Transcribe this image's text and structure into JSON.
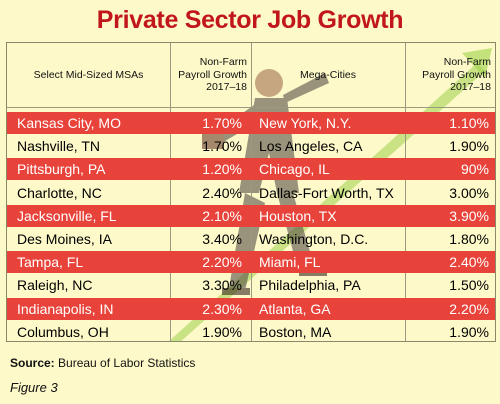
{
  "title": "Private Sector Job Growth",
  "headers": {
    "left_city": "Select Mid-Sized MSAs",
    "left_growth_lines": [
      "Non-Farm",
      "Payroll Growth",
      "2017–18"
    ],
    "right_city": "Mega-Cities",
    "right_growth_lines": [
      "Non-Farm",
      "Payroll Growth",
      "2017–18"
    ]
  },
  "chart_data": {
    "type": "table",
    "title": "Private Sector Job Growth",
    "columns": [
      "Select Mid-Sized MSAs",
      "Non-Farm Payroll Growth 2017–18",
      "Mega-Cities",
      "Non-Farm Payroll Growth 2017–18"
    ],
    "rows": [
      {
        "mid_city": "Kansas City, MO",
        "mid_growth": "1.70%",
        "mega_city": "New York, N.Y.",
        "mega_growth": "1.10%",
        "highlight": true
      },
      {
        "mid_city": "Nashville, TN",
        "mid_growth": "1.70%",
        "mega_city": "Los Angeles, CA",
        "mega_growth": "1.90%",
        "highlight": false
      },
      {
        "mid_city": "Pittsburgh, PA",
        "mid_growth": "1.20%",
        "mega_city": "Chicago, IL",
        "mega_growth": "90%",
        "highlight": true
      },
      {
        "mid_city": "Charlotte, NC",
        "mid_growth": "2.40%",
        "mega_city": "Dallas-Fort Worth, TX",
        "mega_growth": "3.00%",
        "highlight": false
      },
      {
        "mid_city": "Jacksonville, FL",
        "mid_growth": "2.10%",
        "mega_city": "Houston, TX",
        "mega_growth": "3.90%",
        "highlight": true
      },
      {
        "mid_city": "Des Moines, IA",
        "mid_growth": "3.40%",
        "mega_city": "Washington, D.C.",
        "mega_growth": "1.80%",
        "highlight": false
      },
      {
        "mid_city": "Tampa, FL",
        "mid_growth": "2.20%",
        "mega_city": "Miami, FL",
        "mega_growth": "2.40%",
        "highlight": true
      },
      {
        "mid_city": "Raleigh, NC",
        "mid_growth": "3.30%",
        "mega_city": "Philadelphia, PA",
        "mega_growth": "1.50%",
        "highlight": false
      },
      {
        "mid_city": "Indianapolis, IN",
        "mid_growth": "2.30%",
        "mega_city": "Atlanta, GA",
        "mega_growth": "2.20%",
        "highlight": true
      },
      {
        "mid_city": "Columbus, OH",
        "mid_growth": "1.90%",
        "mega_city": "Boston, MA",
        "mega_growth": "1.90%",
        "highlight": false
      }
    ]
  },
  "colors": {
    "title": "#c0161c",
    "highlight_row": "#e8433a",
    "background": "#fdf9c9"
  },
  "source": {
    "label": "Source:",
    "text": " Bureau of Labor Statistics"
  },
  "figure_label": "Figure 3"
}
